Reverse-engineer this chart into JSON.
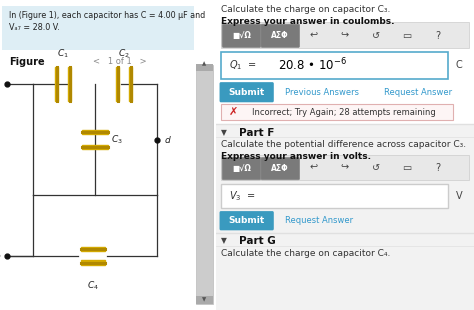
{
  "bg_color": "#ffffff",
  "panel_left_bg": "#deeef5",
  "panel_left_text_line1": "In (Figure 1), each capacitor has C = 4.00 μF and",
  "panel_left_text_line2": "Vₐ₇ = 28.0 V.",
  "figure_label": "Figure",
  "figure_nav": "<   1 of 1   >",
  "right_title_e": "Calculate the charge on capacitor C₃.",
  "right_express_e": "Express your answer in coulombs.",
  "toolbar_icons": [
    "■√Ω",
    "ΑΣΦ",
    "↩",
    "↪",
    "↺",
    "▭",
    "?"
  ],
  "answer_label_e": "Q₁ =",
  "answer_value_e": "20.8 • 10⁻⁶",
  "answer_unit_e": "C",
  "submit_color": "#3a9abf",
  "submit_text": "Submit",
  "prev_ans_text": "Previous Answers",
  "req_ans_text": "Request Answer",
  "incorrect_x": "✗",
  "incorrect_text": "Incorrect; Try Again; 28 attempts remaining",
  "part_f_label": "Part F",
  "part_f_title": "Calculate the potential difference across capacitor C₃.",
  "part_f_express": "Express your answer in volts.",
  "answer_label_f": "V₃ =",
  "answer_unit_f": "V",
  "submit_text_f": "Submit",
  "req_ans_text_f": "Request Answer",
  "part_g_label": "Part G",
  "part_g_title": "Calculate the charge on capacitor C₄.",
  "section_divider_color": "#e0e0e0",
  "part_f_bg": "#f2f2f2",
  "part_g_bg": "#f2f2f2",
  "cap_color": "#d4aa00",
  "cap_plate_color": "#b08800",
  "wire_color": "#333333",
  "dot_color": "#111111",
  "label_color": "#222222",
  "scrollbar_bg": "#cccccc",
  "scrollbar_thumb": "#999999"
}
